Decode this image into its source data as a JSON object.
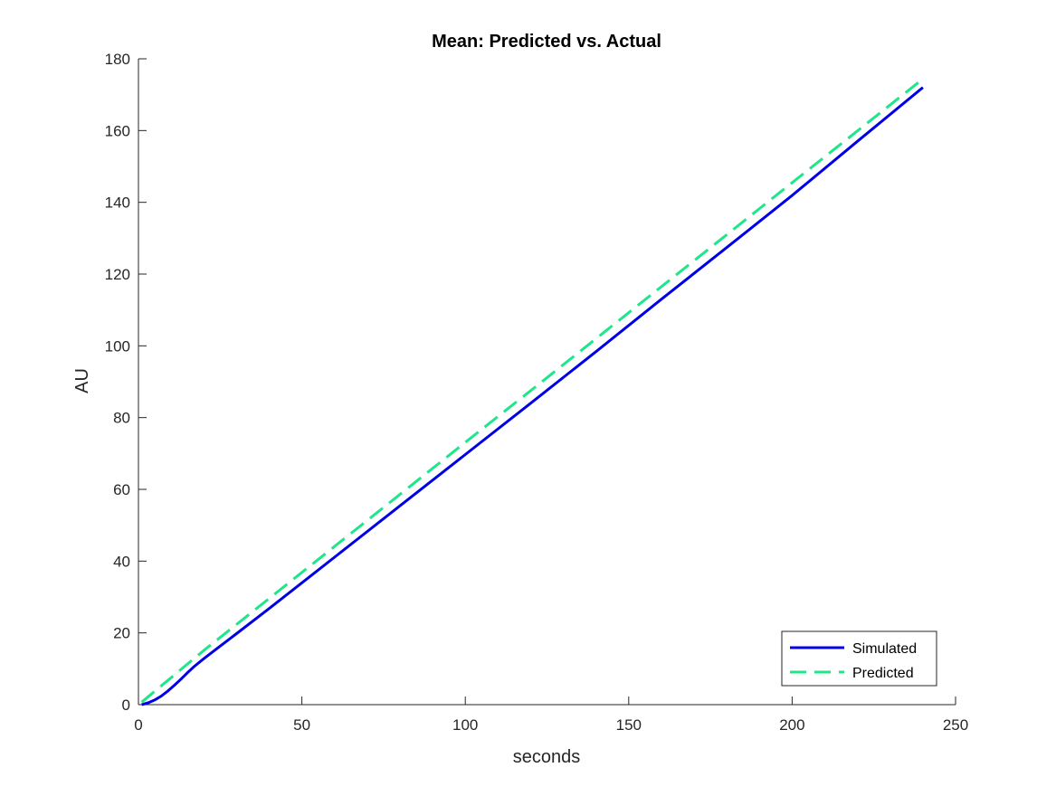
{
  "chart_data": {
    "type": "line",
    "title": "Mean: Predicted vs. Actual",
    "xlabel": "seconds",
    "ylabel": "AU",
    "xlim": [
      0,
      250
    ],
    "ylim": [
      0,
      180
    ],
    "xticks": [
      0,
      50,
      100,
      150,
      200,
      250
    ],
    "yticks": [
      0,
      20,
      40,
      60,
      80,
      100,
      120,
      140,
      160,
      180
    ],
    "grid": false,
    "legend_position": "bottom-right",
    "series": [
      {
        "name": "Simulated",
        "color": "#0000e6",
        "style": "solid",
        "x": [
          1,
          3,
          5,
          7,
          9,
          11,
          13,
          15,
          17,
          20,
          25,
          30,
          40,
          60,
          80,
          100,
          120,
          140,
          160,
          180,
          200,
          220,
          240
        ],
        "y": [
          0,
          0.5,
          1.3,
          2.4,
          3.8,
          5.4,
          7.1,
          8.9,
          10.6,
          12.8,
          16.3,
          19.8,
          26.8,
          41.1,
          55.4,
          69.7,
          84.0,
          98.4,
          113.0,
          127.4,
          141.9,
          157.0,
          172.0
        ]
      },
      {
        "name": "Predicted",
        "color": "#1ee68c",
        "style": "dashed",
        "x": [
          1,
          20,
          40,
          60,
          80,
          100,
          120,
          140,
          160,
          180,
          200,
          220,
          240
        ],
        "y": [
          0.7,
          15.1,
          29.6,
          44.1,
          58.6,
          73.1,
          87.5,
          102.0,
          116.5,
          131.0,
          145.5,
          159.9,
          174.4
        ]
      }
    ]
  }
}
